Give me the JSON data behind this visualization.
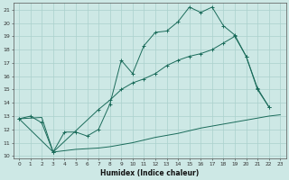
{
  "xlabel": "Humidex (Indice chaleur)",
  "bg_color": "#cde8e5",
  "grid_color": "#aad0cc",
  "line_color": "#1a6b5a",
  "xlim": [
    -0.5,
    23.5
  ],
  "ylim": [
    9.8,
    21.5
  ],
  "xticks": [
    0,
    1,
    2,
    3,
    4,
    5,
    6,
    7,
    8,
    9,
    10,
    11,
    12,
    13,
    14,
    15,
    16,
    17,
    18,
    19,
    20,
    21,
    22,
    23
  ],
  "yticks": [
    10,
    11,
    12,
    13,
    14,
    15,
    16,
    17,
    18,
    19,
    20,
    21
  ],
  "line1_x": [
    0,
    1,
    2,
    3,
    4,
    5,
    6,
    7,
    8,
    9,
    10,
    11,
    12,
    13,
    14,
    15,
    16,
    17,
    18,
    19,
    20,
    21,
    22
  ],
  "line1_y": [
    12.8,
    13.0,
    12.5,
    10.3,
    11.8,
    11.8,
    11.5,
    12.0,
    13.9,
    17.2,
    16.2,
    18.3,
    19.3,
    19.4,
    20.1,
    21.2,
    20.8,
    21.2,
    19.8,
    19.1,
    17.5,
    15.1,
    13.7
  ],
  "line2_x": [
    0,
    3,
    7,
    8,
    9,
    10,
    11,
    12,
    13,
    14,
    15,
    16,
    17,
    18,
    19,
    20,
    21,
    22
  ],
  "line2_y": [
    12.8,
    10.3,
    13.5,
    14.2,
    15.0,
    15.5,
    15.8,
    16.2,
    16.8,
    17.2,
    17.5,
    17.7,
    18.0,
    18.5,
    19.0,
    17.5,
    15.0,
    13.7
  ],
  "line3_x": [
    0,
    1,
    2,
    3,
    4,
    5,
    6,
    7,
    8,
    9,
    10,
    11,
    12,
    13,
    14,
    15,
    16,
    17,
    18,
    19,
    20,
    21,
    22,
    23
  ],
  "line3_y": [
    12.8,
    12.85,
    12.9,
    10.3,
    10.4,
    10.5,
    10.55,
    10.6,
    10.7,
    10.85,
    11.0,
    11.2,
    11.4,
    11.55,
    11.7,
    11.9,
    12.1,
    12.25,
    12.4,
    12.55,
    12.7,
    12.85,
    13.0,
    13.1
  ]
}
